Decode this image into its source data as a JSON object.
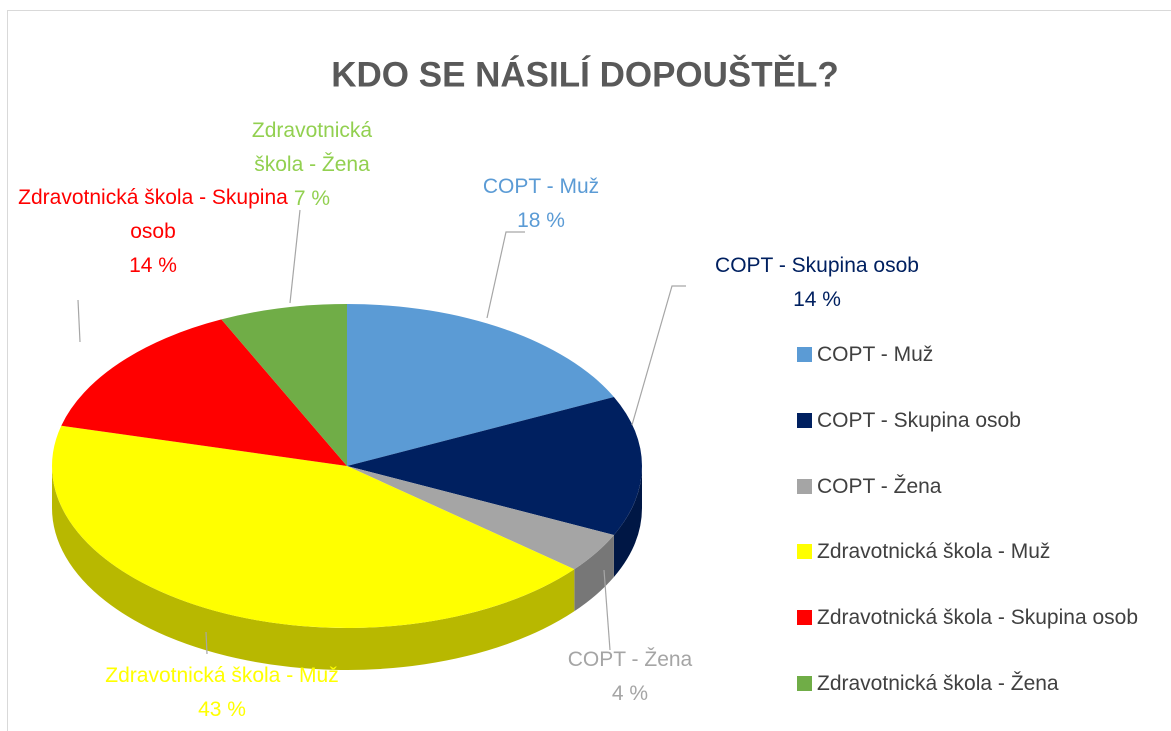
{
  "chart_data": {
    "type": "pie",
    "title": "KDO SE NÁSILÍ DOPOUŠTĚL?",
    "categories": [
      "COPT - Muž",
      "COPT - Skupina osob",
      "COPT - Žena",
      "Zdravotnická škola - Muž",
      "Zdravotnická škola - Skupina osob",
      "Zdravotnická škola - Žena"
    ],
    "values": [
      18,
      14,
      4,
      43,
      14,
      7
    ],
    "value_labels": [
      "18 %",
      "14 %",
      "4 %",
      "43 %",
      "14 %",
      "7 %"
    ],
    "colors": [
      "#5b9bd5",
      "#002060",
      "#a5a5a5",
      "#ffff00",
      "#ff0000",
      "#70ad47"
    ],
    "legend": "right"
  }
}
